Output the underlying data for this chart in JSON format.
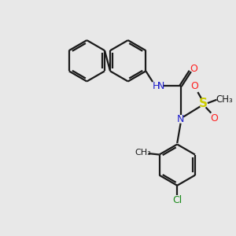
{
  "bg_color": "#e8e8e8",
  "bond_color": "#1a1a1a",
  "N_color": "#2020cc",
  "O_color": "#ff2020",
  "S_color": "#cccc00",
  "Cl_color": "#1a8a1a",
  "line_width": 1.6,
  "font_size": 9,
  "figsize": [
    3.0,
    3.0
  ],
  "dpi": 100,
  "xlim": [
    0,
    10
  ],
  "ylim": [
    0,
    10
  ]
}
